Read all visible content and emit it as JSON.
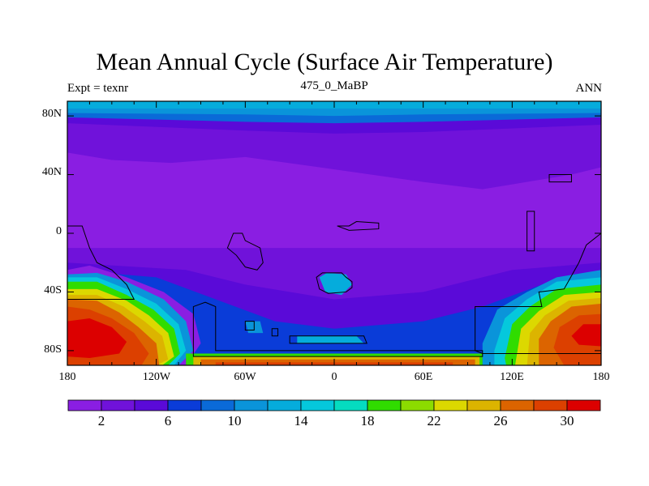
{
  "title": "Mean Annual Cycle (Surface Air Temperature)",
  "left_subtitle": "Expt = texnr",
  "center_subtitle": "475_0_MaBP",
  "right_subtitle": "ANN",
  "map": {
    "lat_labels": [
      "80N",
      "40N",
      "0",
      "40S",
      "80S"
    ],
    "lat_values": [
      80,
      40,
      0,
      -40,
      -80
    ],
    "lon_labels": [
      "180",
      "120W",
      "60W",
      "0",
      "60E",
      "120E",
      "180"
    ],
    "lon_values": [
      -180,
      -120,
      -60,
      0,
      60,
      120,
      180
    ]
  },
  "colorbar": {
    "levels": [
      0,
      2,
      4,
      6,
      8,
      10,
      12,
      14,
      16,
      18,
      20,
      22,
      24,
      26,
      28,
      30,
      32
    ],
    "labels": [
      "2",
      "6",
      "10",
      "14",
      "18",
      "22",
      "26",
      "30"
    ],
    "label_values": [
      2,
      6,
      10,
      14,
      18,
      22,
      26,
      30
    ],
    "colors": [
      "#8a1ee2",
      "#7012da",
      "#5a0ad8",
      "#0a3cd8",
      "#0a6ad8",
      "#0a94da",
      "#05acdc",
      "#05c8dc",
      "#05dcc0",
      "#30dc00",
      "#8cdc00",
      "#dcd800",
      "#dcb400",
      "#dc6400",
      "#dc4000",
      "#dc0000"
    ]
  }
}
